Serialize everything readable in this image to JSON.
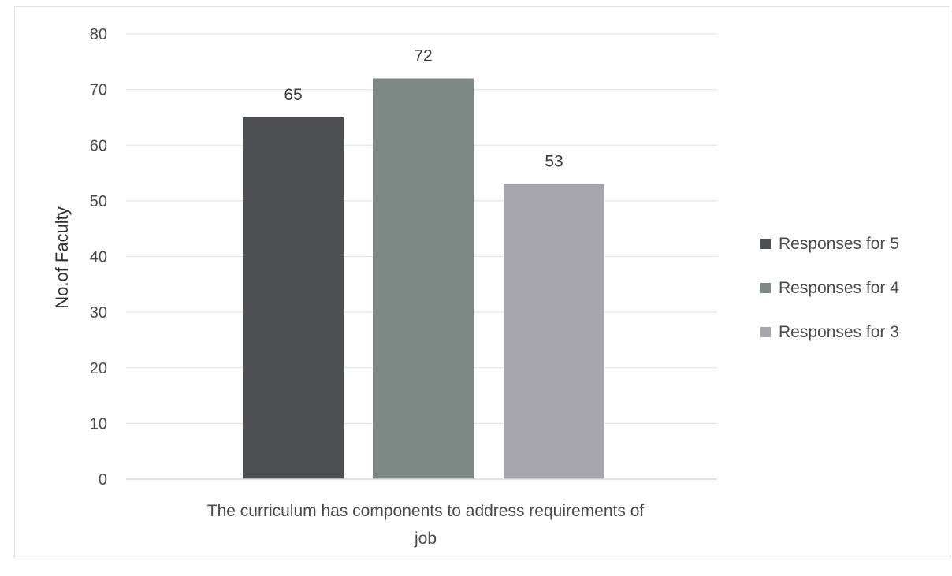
{
  "chart_data": {
    "type": "bar",
    "categories": [
      "The curriculum has components to address requirements of job"
    ],
    "category_lines": [
      "The curriculum has components to address requirements of",
      "job"
    ],
    "series": [
      {
        "name": "Responses for 5",
        "values": [
          65
        ],
        "color": "#4d4f52"
      },
      {
        "name": "Responses for 4",
        "values": [
          72
        ],
        "color": "#7f8a86"
      },
      {
        "name": "Responses for 3",
        "values": [
          53
        ],
        "color": "#a6a4ac"
      }
    ],
    "title": "",
    "xlabel": "",
    "ylabel": "No.of Faculty",
    "ylim": [
      0,
      80
    ],
    "yticks": [
      0,
      10,
      20,
      30,
      40,
      50,
      60,
      70,
      80
    ],
    "grid": true,
    "legend": "right",
    "data_labels": true
  }
}
